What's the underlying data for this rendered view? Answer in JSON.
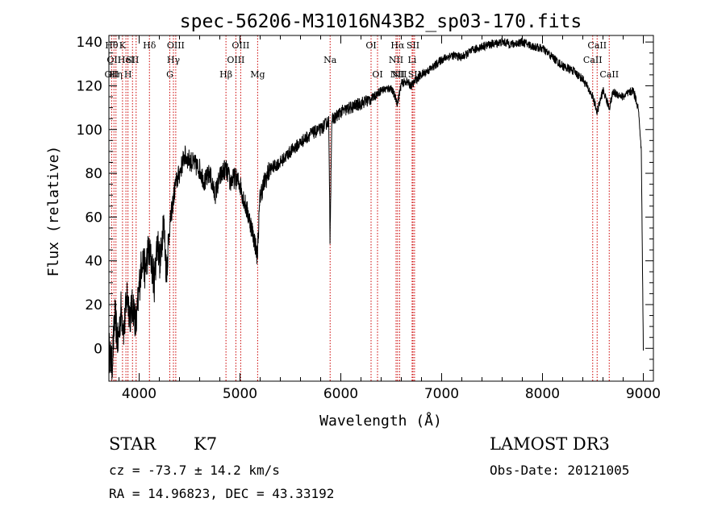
{
  "chart_data": {
    "type": "line",
    "title": "spec-56206-M31016N43B2_sp03-170.fits",
    "xlabel": "Wavelength (Å)",
    "ylabel": "Flux (relative)",
    "xlim": [
      3700,
      9100
    ],
    "ylim": [
      -15,
      143
    ],
    "xticks": [
      4000,
      5000,
      6000,
      7000,
      8000,
      9000
    ],
    "yticks": [
      0,
      20,
      40,
      60,
      80,
      100,
      120,
      140
    ],
    "line_color": "#000000",
    "marker_color": "#cc0000",
    "series": [
      {
        "x": [
          3700,
          3730,
          3760,
          3790,
          3820,
          3850,
          3880,
          3910,
          3940,
          3970,
          4000,
          4030,
          4060,
          4090,
          4120,
          4150,
          4180,
          4210,
          4240,
          4270,
          4300,
          4330,
          4360,
          4400,
          4450,
          4500,
          4550,
          4600,
          4650,
          4700,
          4750,
          4800,
          4850,
          4880,
          4900,
          4950,
          5000,
          5050,
          5100,
          5150,
          5170,
          5200,
          5250,
          5300,
          5400,
          5500,
          5600,
          5700,
          5800,
          5880,
          5893,
          5910,
          6000,
          6100,
          6200,
          6300,
          6400,
          6500,
          6563,
          6600,
          6650,
          6700,
          6750,
          6800,
          6900,
          7000,
          7100,
          7200,
          7300,
          7400,
          7500,
          7600,
          7700,
          7800,
          7900,
          8000,
          8100,
          8200,
          8300,
          8400,
          8498,
          8542,
          8600,
          8662,
          8700,
          8800,
          8900,
          8950,
          8980,
          9000
        ],
        "y": [
          0,
          -8,
          15,
          2,
          18,
          8,
          25,
          15,
          20,
          10,
          28,
          42,
          35,
          45,
          40,
          30,
          50,
          38,
          60,
          35,
          55,
          65,
          75,
          80,
          88,
          86,
          84,
          82,
          76,
          80,
          70,
          78,
          82,
          80,
          76,
          78,
          75,
          66,
          58,
          48,
          42,
          70,
          77,
          82,
          85,
          90,
          94,
          98,
          100,
          104,
          50,
          104,
          108,
          110,
          112,
          114,
          118,
          119,
          112,
          121,
          122,
          120,
          123,
          125,
          128,
          132,
          134,
          133,
          136,
          138,
          139,
          140,
          139,
          140,
          138,
          137,
          133,
          129,
          127,
          123,
          115,
          108,
          118,
          110,
          117,
          115,
          118,
          110,
          90,
          -1
        ]
      }
    ],
    "lines": [
      {
        "x": 3727,
        "labels": [
          "Hθ",
          "OII"
        ],
        "rows": [
          0,
          2
        ]
      },
      {
        "x": 3750,
        "labels": [
          "OII"
        ],
        "rows": [
          1
        ]
      },
      {
        "x": 3770,
        "labels": [
          "Hη"
        ],
        "rows": [
          2
        ]
      },
      {
        "x": 3835,
        "labels": [
          "K"
        ],
        "rows": [
          0
        ]
      },
      {
        "x": 3869,
        "labels": [
          "HeI"
        ],
        "rows": [
          1
        ]
      },
      {
        "x": 3889,
        "labels": [
          "H"
        ],
        "rows": [
          2
        ]
      },
      {
        "x": 3934,
        "labels": [
          "SII"
        ],
        "rows": [
          1
        ]
      },
      {
        "x": 3970,
        "labels": [],
        "rows": []
      },
      {
        "x": 4102,
        "labels": [
          "Hδ"
        ],
        "rows": [
          0
        ]
      },
      {
        "x": 4304,
        "labels": [
          "G"
        ],
        "rows": [
          2
        ]
      },
      {
        "x": 4340,
        "labels": [
          "Hγ"
        ],
        "rows": [
          1
        ]
      },
      {
        "x": 4363,
        "labels": [
          "OIII"
        ],
        "rows": [
          0
        ]
      },
      {
        "x": 4861,
        "labels": [
          "Hβ"
        ],
        "rows": [
          2
        ]
      },
      {
        "x": 4959,
        "labels": [
          "OIII"
        ],
        "rows": [
          1
        ]
      },
      {
        "x": 5007,
        "labels": [
          "OIII"
        ],
        "rows": [
          0
        ]
      },
      {
        "x": 5175,
        "labels": [
          "Mg"
        ],
        "rows": [
          2
        ]
      },
      {
        "x": 5894,
        "labels": [
          "Na"
        ],
        "rows": [
          1
        ]
      },
      {
        "x": 6300,
        "labels": [
          "OI"
        ],
        "rows": [
          0
        ]
      },
      {
        "x": 6364,
        "labels": [
          "OI"
        ],
        "rows": [
          2
        ]
      },
      {
        "x": 6548,
        "labels": [
          "NII"
        ],
        "rows": [
          1
        ]
      },
      {
        "x": 6563,
        "labels": [
          "Hα",
          "NII"
        ],
        "rows": [
          0,
          2
        ]
      },
      {
        "x": 6583,
        "labels": [
          "NII"
        ],
        "rows": [
          2
        ]
      },
      {
        "x": 6707,
        "labels": [
          "Li"
        ],
        "rows": [
          1
        ]
      },
      {
        "x": 6716,
        "labels": [
          "SII"
        ],
        "rows": [
          0
        ]
      },
      {
        "x": 6731,
        "labels": [
          "SII"
        ],
        "rows": [
          2
        ]
      },
      {
        "x": 8498,
        "labels": [
          "CaII"
        ],
        "rows": [
          1
        ]
      },
      {
        "x": 8542,
        "labels": [
          "CaII"
        ],
        "rows": [
          0
        ]
      },
      {
        "x": 8662,
        "labels": [
          "CaII"
        ],
        "rows": [
          2
        ]
      }
    ]
  },
  "info": {
    "class": "STAR",
    "subclass": "K7",
    "redshift": "cz = -73.7 ± 14.2 km/s",
    "coords": "RA =  14.96823, DEC =  43.33192",
    "survey": "LAMOST DR3",
    "obs_date": "Obs-Date: 20121005"
  }
}
